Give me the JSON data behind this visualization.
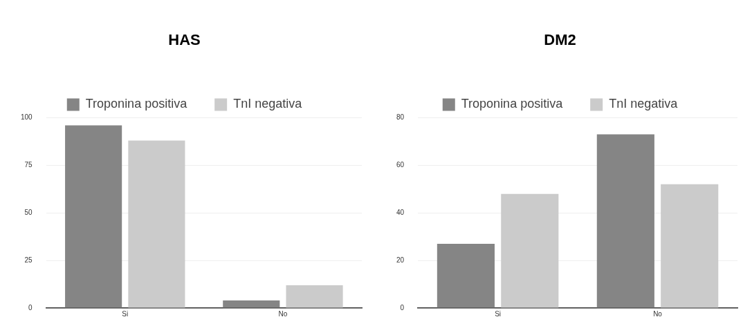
{
  "chart_data": [
    {
      "type": "bar",
      "title": "HAS",
      "categories": [
        "Si",
        "No"
      ],
      "series": [
        {
          "name": "Troponina positiva",
          "color": "#858585",
          "values": [
            96,
            4
          ]
        },
        {
          "name": "TnI negativa",
          "color": "#cbcbcb",
          "values": [
            88,
            12
          ]
        }
      ],
      "ylim": [
        0,
        100
      ],
      "yticks": [
        0,
        25,
        50,
        75,
        100
      ],
      "grid": "y",
      "legend": "top"
    },
    {
      "type": "bar",
      "title": "DM2",
      "categories": [
        "Si",
        "No"
      ],
      "series": [
        {
          "name": "Troponina positiva",
          "color": "#858585",
          "values": [
            27,
            73
          ]
        },
        {
          "name": "TnI negativa",
          "color": "#cbcbcb",
          "values": [
            48,
            52
          ]
        }
      ],
      "ylim": [
        0,
        80
      ],
      "yticks": [
        0,
        20,
        40,
        60,
        80
      ],
      "grid": "y",
      "legend": "top"
    }
  ]
}
